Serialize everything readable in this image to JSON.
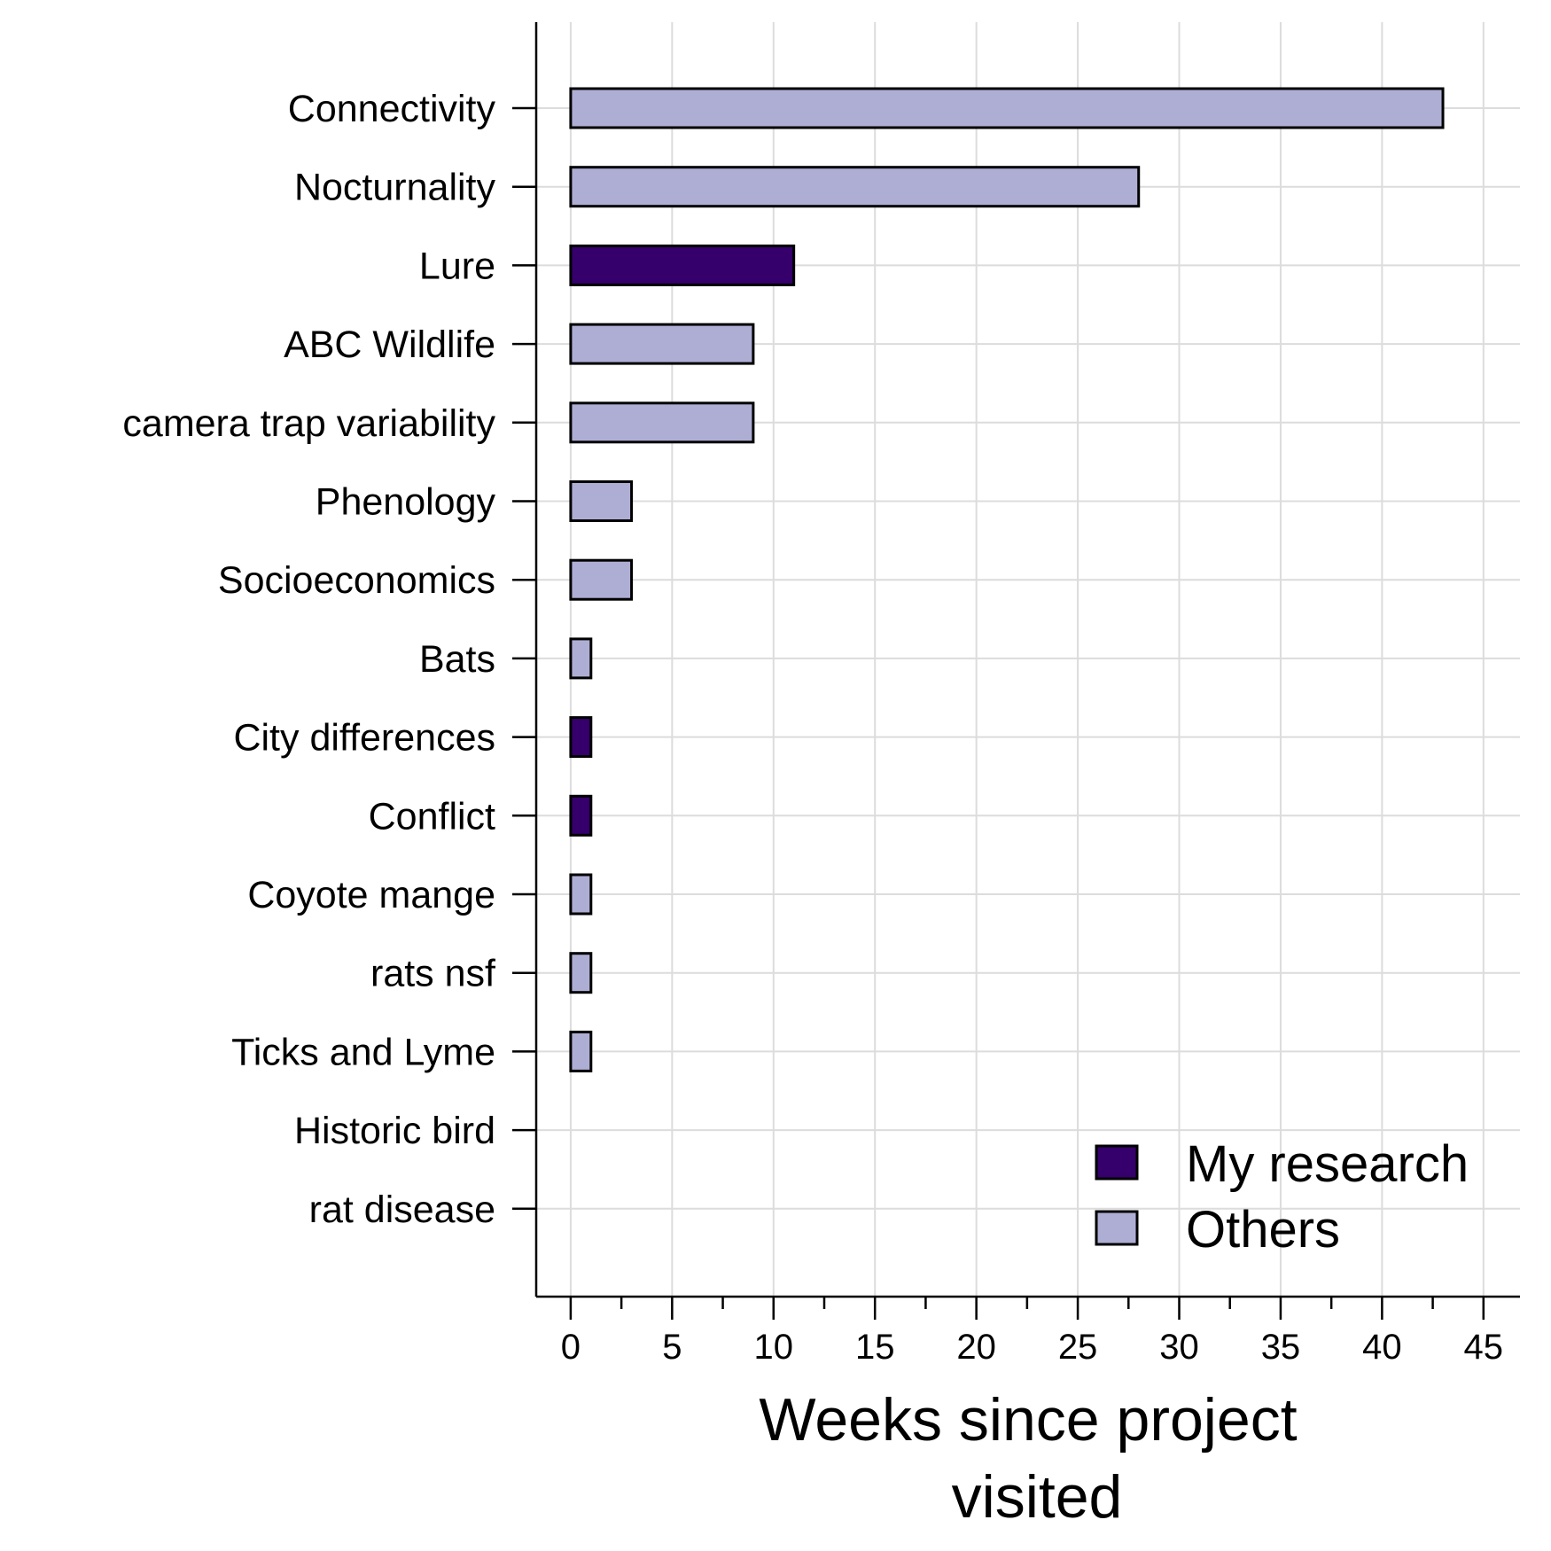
{
  "chart_data": {
    "type": "bar",
    "orientation": "horizontal",
    "categories": [
      "Connectivity",
      "Nocturnality",
      "Lure",
      "ABC Wildlife",
      "camera trap variability",
      "Phenology",
      "Socioeconomics",
      "Bats",
      "City differences",
      "Conflict",
      "Coyote mange",
      "rats nsf",
      "Ticks and Lyme",
      "Historic bird",
      "rat disease"
    ],
    "values": [
      43,
      28,
      11,
      9,
      9,
      3,
      3,
      1,
      1,
      1,
      1,
      1,
      1,
      0,
      0
    ],
    "groups": [
      "Others",
      "Others",
      "My research",
      "Others",
      "Others",
      "Others",
      "Others",
      "Others",
      "My research",
      "My research",
      "Others",
      "Others",
      "Others",
      "My research",
      "Others"
    ],
    "series": [
      {
        "name": "My research",
        "color": "#35006b"
      },
      {
        "name": "Others",
        "color": "#aeaed5"
      }
    ],
    "xlabel": "Weeks since project visited",
    "xlabel_lines": [
      "Weeks since project",
      "visited"
    ],
    "ylabel": "",
    "xlim": [
      -1.7,
      46.8
    ],
    "xticks": [
      0,
      5,
      10,
      15,
      20,
      25,
      30,
      35,
      40,
      45
    ],
    "grid": true,
    "legend_position": "bottom-right"
  }
}
